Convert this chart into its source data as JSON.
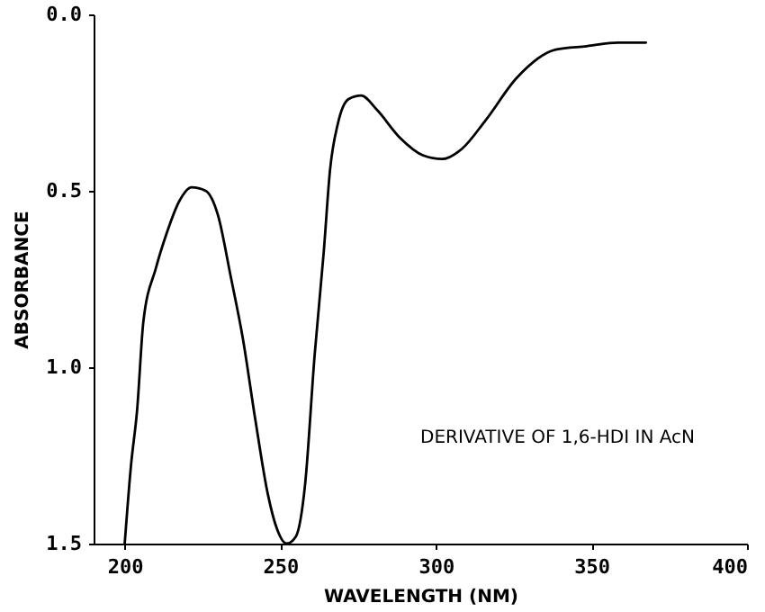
{
  "chart_data": {
    "type": "line",
    "xlabel": "WAVELENGTH (NM)",
    "ylabel": "ABSORBANCE",
    "annotations": [
      "DERIVATIVE OF 1,6-HDI IN AcN"
    ],
    "xlim": [
      190,
      400
    ],
    "xticks": [
      200,
      250,
      300,
      350,
      400
    ],
    "ylim": [
      1.5,
      0
    ],
    "yticks": [
      {
        "value": 0,
        "label": "0.0"
      },
      {
        "value": 0.5,
        "label": "0.5"
      },
      {
        "value": 1,
        "label": "1.0"
      },
      {
        "value": 1.5,
        "label": "1.5"
      }
    ],
    "grid": false,
    "line_style": "solid",
    "series": [
      {
        "color": "#000000",
        "x": [
          200,
          202,
          204,
          206,
          210,
          213.5,
          217.5,
          221.5,
          226,
          230,
          234,
          238,
          242,
          246,
          249,
          252,
          255,
          258,
          261,
          264,
          266,
          268.5,
          272,
          276,
          281,
          288.5,
          296,
          302,
          308.5,
          316,
          326,
          338.5,
          348.5,
          358.5,
          367.5
        ],
        "values": [
          1.5,
          1.28,
          1.12,
          0.87,
          0.72,
          0.62,
          0.53,
          0.49,
          0.5,
          0.57,
          0.74,
          0.92,
          1.15,
          1.36,
          1.46,
          1.5,
          1.48,
          1.33,
          0.97,
          0.67,
          0.44,
          0.31,
          0.24,
          0.23,
          0.27,
          0.35,
          0.4,
          0.41,
          0.38,
          0.3,
          0.18,
          0.1,
          0.09,
          0.08,
          0.08
        ]
      }
    ]
  }
}
